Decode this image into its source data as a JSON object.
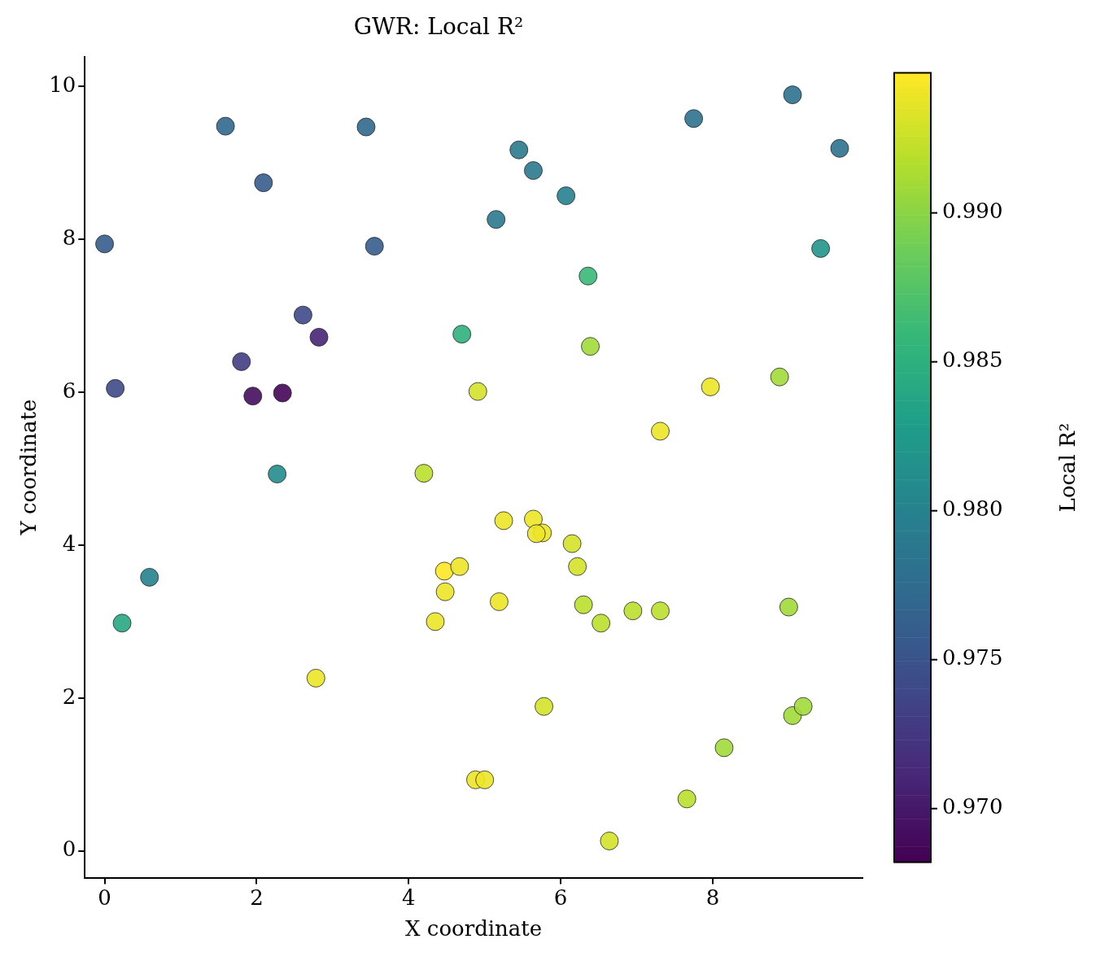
{
  "chart_data": {
    "type": "scatter",
    "title": "GWR: Local R²",
    "xlabel": "X coordinate",
    "ylabel": "Y coordinate",
    "clabel": "Local R²",
    "xlim": [
      -0.26,
      9.97
    ],
    "ylim": [
      -0.35,
      10.39
    ],
    "xticks": [
      0,
      2,
      4,
      6,
      8
    ],
    "yticks": [
      0,
      2,
      4,
      6,
      8,
      10
    ],
    "clim": [
      0.9682,
      0.9947
    ],
    "cticks": [
      {
        "value": 0.97,
        "label": "0.970"
      },
      0.975,
      {
        "value": 0.98,
        "label": "0.980"
      },
      0.985,
      {
        "value": 0.99,
        "label": "0.990"
      }
    ],
    "grid": false,
    "legend": false,
    "marker": "circle",
    "series": [
      {
        "x": [
          0.0,
          0.14,
          0.23,
          0.59,
          1.59,
          1.8,
          1.95,
          2.09,
          2.27,
          2.34,
          2.61,
          2.78,
          2.82,
          3.44,
          3.55,
          4.2,
          4.35,
          4.48,
          4.47,
          4.67,
          4.7,
          4.91,
          4.88,
          5.0,
          5.15,
          5.19,
          5.25,
          5.45,
          5.64,
          5.64,
          5.76,
          5.68,
          5.78,
          6.07,
          6.15,
          6.22,
          6.3,
          6.36,
          6.39,
          6.53,
          6.64,
          6.95,
          7.31,
          7.31,
          7.66,
          7.75,
          7.97,
          8.15,
          8.88,
          9.0,
          9.05,
          9.05,
          9.19,
          9.42,
          9.67
        ],
        "values": [
          7.94,
          6.05,
          2.98,
          3.58,
          9.48,
          6.4,
          5.95,
          8.74,
          4.93,
          5.99,
          7.01,
          2.26,
          6.72,
          9.47,
          7.91,
          4.94,
          3.0,
          3.39,
          3.66,
          3.72,
          6.76,
          6.01,
          0.93,
          0.93,
          8.26,
          3.26,
          4.32,
          9.17,
          4.34,
          8.9,
          4.16,
          4.15,
          1.89,
          8.57,
          4.02,
          3.72,
          3.22,
          7.52,
          6.6,
          2.98,
          0.13,
          3.14,
          3.14,
          5.49,
          0.68,
          9.58,
          6.07,
          1.35,
          6.2,
          3.19,
          9.89,
          1.77,
          1.89,
          7.88,
          9.19
        ],
        "cvalues": [
          0.976,
          0.974,
          0.984,
          0.98,
          0.977,
          0.973,
          0.969,
          0.976,
          0.981,
          0.9685,
          0.974,
          0.994,
          0.971,
          0.977,
          0.976,
          0.992,
          0.994,
          0.994,
          0.995,
          0.994,
          0.985,
          0.993,
          0.994,
          0.994,
          0.979,
          0.994,
          0.994,
          0.979,
          0.994,
          0.979,
          0.994,
          0.994,
          0.993,
          0.98,
          0.993,
          0.993,
          0.992,
          0.986,
          0.991,
          0.992,
          0.993,
          0.992,
          0.992,
          0.994,
          0.992,
          0.978,
          0.994,
          0.991,
          0.991,
          0.991,
          0.978,
          0.991,
          0.991,
          0.982,
          0.978
        ]
      }
    ]
  }
}
